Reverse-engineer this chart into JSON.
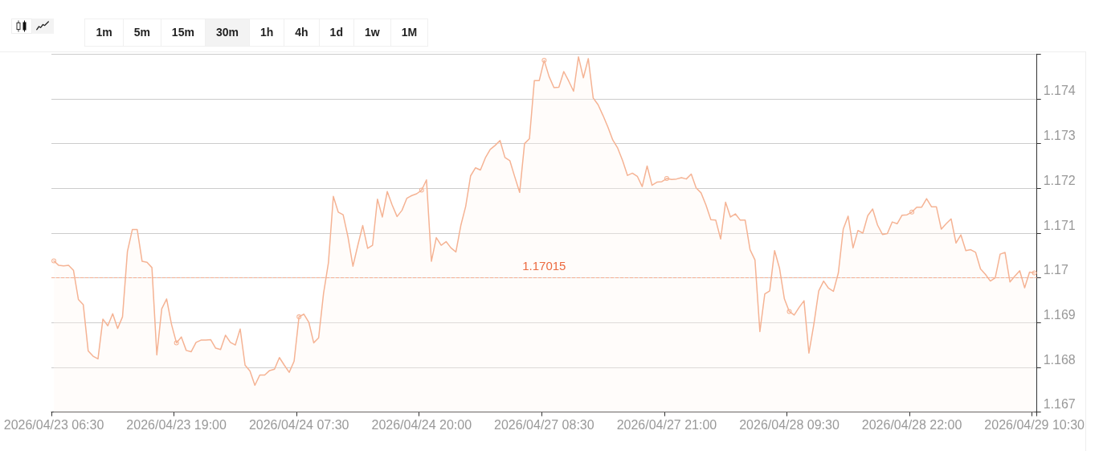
{
  "chart_data": {
    "type": "area",
    "categories": [
      "2026/04/23 06:30",
      null,
      null,
      null,
      null,
      null,
      null,
      null,
      null,
      null,
      null,
      null,
      null,
      null,
      null,
      null,
      null,
      null,
      null,
      null,
      null,
      null,
      null,
      null,
      null,
      "2026/04/23 19:00",
      null,
      null,
      null,
      null,
      null,
      null,
      null,
      null,
      null,
      null,
      null,
      null,
      null,
      null,
      null,
      null,
      null,
      null,
      null,
      null,
      null,
      null,
      null,
      null,
      "2026/04/24 07:30",
      null,
      null,
      null,
      null,
      null,
      null,
      null,
      null,
      null,
      null,
      null,
      null,
      null,
      null,
      null,
      null,
      null,
      null,
      null,
      null,
      null,
      null,
      null,
      null,
      "2026/04/24 20:00",
      null,
      null,
      null,
      null,
      null,
      null,
      null,
      null,
      null,
      null,
      null,
      null,
      null,
      null,
      null,
      null,
      null,
      null,
      null,
      null,
      null,
      null,
      null,
      null,
      "2026/04/27 08:30",
      null,
      null,
      null,
      null,
      null,
      null,
      null,
      null,
      null,
      null,
      null,
      null,
      null,
      null,
      null,
      null,
      null,
      null,
      null,
      null,
      null,
      null,
      null,
      null,
      "2026/04/27 21:00",
      null,
      null,
      null,
      null,
      null,
      null,
      null,
      null,
      null,
      null,
      null,
      null,
      null,
      null,
      null,
      null,
      null,
      null,
      null,
      null,
      null,
      null,
      null,
      null,
      "2026/04/28 09:30",
      null,
      null,
      null,
      null,
      null,
      null,
      null,
      null,
      null,
      null,
      null,
      null,
      null,
      null,
      null,
      null,
      null,
      null,
      null,
      null,
      null,
      null,
      null,
      null,
      "2026/04/28 22:00",
      null,
      null,
      null,
      null,
      null,
      null,
      null,
      null,
      null,
      null,
      null,
      null,
      null,
      null,
      null,
      null,
      null,
      null,
      null,
      null,
      null,
      null,
      null,
      null,
      "2026/04/29 10:30"
    ],
    "series": [
      {
        "color": "#f5b394",
        "values": [
          1.17053,
          1.17043,
          1.17042,
          1.17043,
          1.17032,
          1.16967,
          1.16955,
          1.16852,
          1.1684,
          1.16834,
          1.16923,
          1.16908,
          1.16935,
          1.16902,
          1.16928,
          1.17074,
          1.17123,
          1.17123,
          1.17052,
          1.1705,
          1.17038,
          1.16843,
          1.16946,
          1.16968,
          1.16911,
          1.1687,
          1.16883,
          1.16853,
          1.1685,
          1.16871,
          1.16876,
          1.16876,
          1.16877,
          1.16858,
          1.16855,
          1.16887,
          1.16871,
          1.16865,
          1.16901,
          1.1682,
          1.16807,
          1.16775,
          1.16798,
          1.16798,
          1.16808,
          1.16811,
          1.16837,
          1.1682,
          1.16804,
          1.16829,
          1.16928,
          1.16934,
          1.16916,
          1.1687,
          1.16881,
          1.1698,
          1.17049,
          1.17197,
          1.17162,
          1.17156,
          1.17106,
          1.17041,
          1.17088,
          1.17132,
          1.17081,
          1.17088,
          1.17191,
          1.17151,
          1.17208,
          1.17178,
          1.17152,
          1.17166,
          1.17193,
          1.17199,
          1.17203,
          1.17211,
          1.17234,
          1.17052,
          1.17105,
          1.17088,
          1.17096,
          1.17082,
          1.17073,
          1.17132,
          1.17175,
          1.17243,
          1.17261,
          1.17256,
          1.17283,
          1.17302,
          1.17311,
          1.17322,
          1.17284,
          1.17277,
          1.17241,
          1.17206,
          1.17315,
          1.17326,
          1.17456,
          1.17456,
          1.17501,
          1.17465,
          1.1744,
          1.17441,
          1.17476,
          1.17455,
          1.17432,
          1.17509,
          1.17462,
          1.17505,
          1.17417,
          1.17402,
          1.17378,
          1.17352,
          1.17323,
          1.17305,
          1.17277,
          1.17244,
          1.17249,
          1.17242,
          1.17219,
          1.17265,
          1.17222,
          1.17229,
          1.1723,
          1.17237,
          1.17235,
          1.17236,
          1.17239,
          1.17236,
          1.17247,
          1.17216,
          1.17205,
          1.17178,
          1.17145,
          1.17144,
          1.17102,
          1.17184,
          1.17151,
          1.17158,
          1.17144,
          1.17144,
          1.17078,
          1.17055,
          1.16895,
          1.16979,
          1.16986,
          1.17076,
          1.17037,
          1.16968,
          1.1694,
          1.16932,
          1.16949,
          1.16964,
          1.16847,
          1.16911,
          1.16986,
          1.17008,
          1.16992,
          1.16985,
          1.17026,
          1.17124,
          1.17153,
          1.17082,
          1.17121,
          1.17115,
          1.17154,
          1.17169,
          1.17133,
          1.17112,
          1.17114,
          1.1714,
          1.17136,
          1.17155,
          1.17156,
          1.17162,
          1.17173,
          1.17173,
          1.17192,
          1.17174,
          1.17174,
          1.17124,
          1.17136,
          1.17147,
          1.17093,
          1.17111,
          1.17076,
          1.17078,
          1.17072,
          1.17035,
          1.17023,
          1.17008,
          1.17015,
          1.17068,
          1.17072,
          1.17006,
          1.17019,
          1.17031,
          1.16993,
          1.17028,
          1.17026
        ]
      },
      {
        "type": "scatter",
        "color": "#f5b394",
        "marker": "circle",
        "x": [
          "2026/04/23 06:30",
          "2026/04/23 19:00",
          "2026/04/24 07:30",
          "2026/04/24 20:00",
          "2026/04/27 08:30",
          "2026/04/27 21:00",
          "2026/04/28 09:30",
          "2026/04/28 22:00",
          "2026/04/29 10:30"
        ],
        "values": [
          1.17053,
          1.1687,
          1.16928,
          1.17211,
          1.17501,
          1.17237,
          1.1694,
          1.17162,
          1.17026
        ]
      }
    ],
    "ylim": [
      1.16715,
      1.17515
    ],
    "yticks": [
      {
        "value": 1.16715,
        "label": "1.167"
      },
      {
        "value": 1.16815,
        "label": "1.168"
      },
      {
        "value": 1.16915,
        "label": "1.169"
      },
      {
        "value": 1.17015,
        "label": "1.17"
      },
      {
        "value": 1.17115,
        "label": "1.171"
      },
      {
        "value": 1.17215,
        "label": "1.172"
      },
      {
        "value": 1.17315,
        "label": "1.173"
      },
      {
        "value": 1.17415,
        "label": "1.174"
      },
      {
        "value": 1.17515,
        "label": null
      }
    ],
    "grid": "y",
    "line_style": "solid",
    "ref_lines": [
      {
        "axis": "y",
        "value": 1.17015,
        "label": "1.17015",
        "color": "#f4ae92",
        "line_style": "dashed"
      }
    ],
    "annotations": [
      "1m",
      "5m",
      "15m",
      "30m",
      "1h",
      "4h",
      "1d",
      "1w",
      "1M"
    ]
  }
}
